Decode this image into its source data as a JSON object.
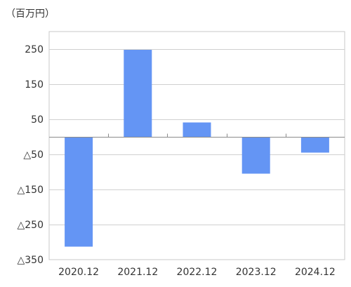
{
  "chart_data": {
    "type": "bar",
    "unit_label": "（百万円）",
    "categories": [
      "2020.12",
      "2021.12",
      "2022.12",
      "2023.12",
      "2024.12"
    ],
    "values": [
      -313,
      248,
      41,
      -105,
      -45
    ],
    "ylim": [
      -350,
      300
    ],
    "ytick_values": [
      250,
      150,
      50,
      -50,
      -150,
      -250,
      -350
    ],
    "ytick_labels": [
      "250",
      "150",
      "50",
      "△50",
      "△150",
      "△250",
      "△350"
    ],
    "bar_color": "#6495f4",
    "grid": true,
    "legend": "none"
  }
}
